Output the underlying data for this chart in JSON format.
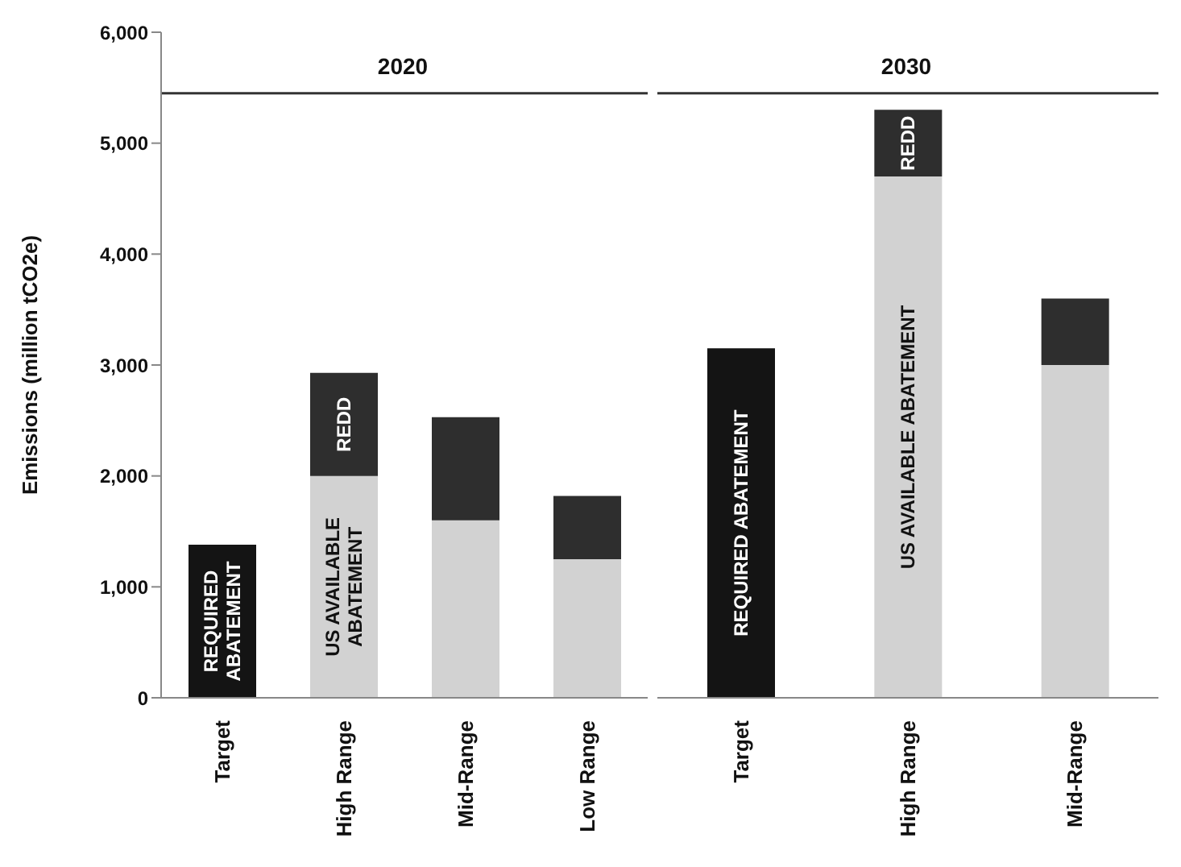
{
  "chart_data": [
    {
      "type": "bar",
      "stacked": true,
      "title": "2020",
      "ylabel": "Emissions (million tCO2e)",
      "categories": [
        "Target",
        "High Range",
        "Mid-Range",
        "Low Range"
      ],
      "series": [
        {
          "name": "REQUIRED ABATEMENT",
          "color": "#141414",
          "values": [
            1380,
            null,
            null,
            null
          ]
        },
        {
          "name": "US AVAILABLE ABATEMENT",
          "color": "#d2d2d2",
          "values": [
            null,
            2000,
            1600,
            1250
          ]
        },
        {
          "name": "REDD",
          "color": "#2e2e2e",
          "values": [
            null,
            930,
            930,
            570
          ]
        }
      ],
      "ref_lines": [
        {
          "axis": "y",
          "value": 5450,
          "color": "#333333"
        }
      ],
      "ylim": [
        0,
        6000
      ],
      "yticks": [
        {
          "value": 0,
          "label": "0"
        },
        {
          "value": 1000,
          "label": "1,000"
        },
        {
          "value": 2000,
          "label": "2,000"
        },
        {
          "value": 3000,
          "label": "3,000"
        },
        {
          "value": 4000,
          "label": "4,000"
        },
        {
          "value": 5000,
          "label": "5,000"
        },
        {
          "value": 6000,
          "label": "6,000"
        }
      ]
    },
    {
      "type": "bar",
      "stacked": true,
      "title": "2030",
      "categories": [
        "Target",
        "High Range",
        "Mid-Range"
      ],
      "tick_labels": "x",
      "series": [
        {
          "name": "REQUIRED ABATEMENT",
          "color": "#141414",
          "values": [
            3150,
            null,
            null
          ]
        },
        {
          "name": "US AVAILABLE ABATEMENT",
          "color": "#d2d2d2",
          "values": [
            null,
            4700,
            3000
          ]
        },
        {
          "name": "REDD",
          "color": "#2e2e2e",
          "values": [
            null,
            600,
            600
          ]
        }
      ],
      "ref_lines": [
        {
          "axis": "y",
          "value": 5450,
          "color": "#333333"
        }
      ],
      "ylim": [
        0,
        6000
      ]
    }
  ]
}
